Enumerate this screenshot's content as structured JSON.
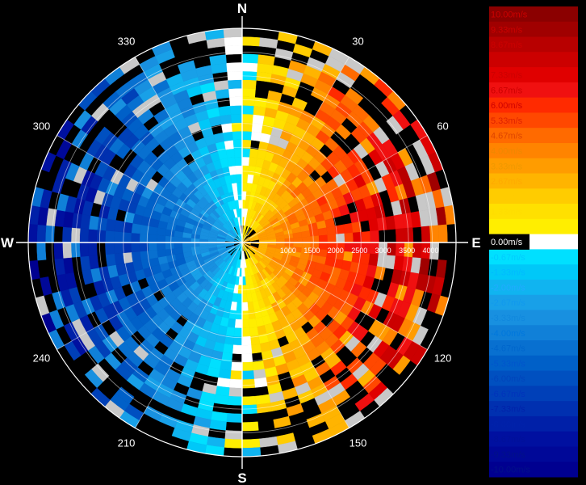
{
  "chart_data": {
    "type": "heatmap",
    "subtype": "polar radial-velocity scan",
    "cardinals": [
      "N",
      "E",
      "S",
      "W"
    ],
    "azimuth_labels": [
      "30",
      "60",
      "120",
      "150",
      "210",
      "240",
      "300",
      "330"
    ],
    "azimuth_label_angles": [
      30,
      60,
      120,
      150,
      210,
      240,
      300,
      330
    ],
    "range_labels": [
      "1000",
      "1500",
      "2000",
      "2500",
      "3000",
      "3500",
      "4000"
    ],
    "range_label_values": [
      1000,
      1500,
      2000,
      2500,
      3000,
      3500,
      4000
    ],
    "range_max": 4500,
    "range_gates": 25,
    "azimuth_bins": 72,
    "colorbar": {
      "labels": [
        "10.00m/s",
        "9.33m/s",
        "8.67m/s",
        "8.00m/s",
        "7.33m/s",
        "6.67m/s",
        "6.00m/s",
        "5.33m/s",
        "4.67m/s",
        "4.00m/s",
        "3.33m/s",
        "2.67m/s",
        "2.00m/s",
        "1.33m/s",
        "0.67m/s",
        "0.00m/s",
        "-0.67m/s",
        "-1.33m/s",
        "-2.00m/s",
        "-2.67m/s",
        "-3.33m/s",
        "-4.00m/s",
        "-4.67m/s",
        "-5.33m/s",
        "-6.00m/s",
        "-6.67m/s",
        "-7.33m/s",
        "-8.00m/s",
        "-8.67m/s",
        "-9.33m/s",
        "-10.00m/s"
      ],
      "values": [
        10,
        9.33,
        8.67,
        8,
        7.33,
        6.67,
        6,
        5.33,
        4.67,
        4,
        3.33,
        2.67,
        2,
        1.33,
        0.67,
        0,
        -0.67,
        -1.33,
        -2,
        -2.67,
        -3.33,
        -4,
        -4.67,
        -5.33,
        -6,
        -6.67,
        -7.33,
        -8,
        -8.67,
        -9.33,
        -10
      ],
      "colors": [
        "#8b0000",
        "#a00000",
        "#b80000",
        "#cc0000",
        "#e00000",
        "#f01010",
        "#ff2a00",
        "#ff4800",
        "#ff6a00",
        "#ff8400",
        "#ff9c00",
        "#ffb400",
        "#ffcc00",
        "#ffe000",
        "#ffee00",
        "#ffffff",
        "#00e0ff",
        "#00c8f8",
        "#10b4f0",
        "#18a0e8",
        "#1890e0",
        "#1080d8",
        "#0870d0",
        "#0060c8",
        "#0050c0",
        "#0040b8",
        "#0030b0",
        "#0020a8",
        "#0010a0",
        "#000898",
        "#000090"
      ],
      "label_colors": [
        "#cc0000",
        "#cc0000",
        "#cc0000",
        "#cc0000",
        "#cc0000",
        "#cc0000",
        "#cc0000",
        "#dd2200",
        "#dd4400",
        "#ee8800",
        "#ee9900",
        "#ffaa00",
        "#ffcc00",
        "#ffdd00",
        "#ffee00",
        "#ffffff",
        "#00ccff",
        "#00bbff",
        "#22aaff",
        "#1199ee",
        "#1188dd",
        "#0077dd",
        "#0066cc",
        "#0055cc",
        "#0044bb",
        "#0033bb",
        "#0022aa",
        "#0022aa",
        "#001199",
        "#001188",
        "#001188"
      ]
    },
    "field_model": {
      "description": "approaching (negative, blue) west half, receding (positive, orange/red) east half",
      "peak_velocity": 9.5,
      "speed_increases_with_range": true
    }
  }
}
